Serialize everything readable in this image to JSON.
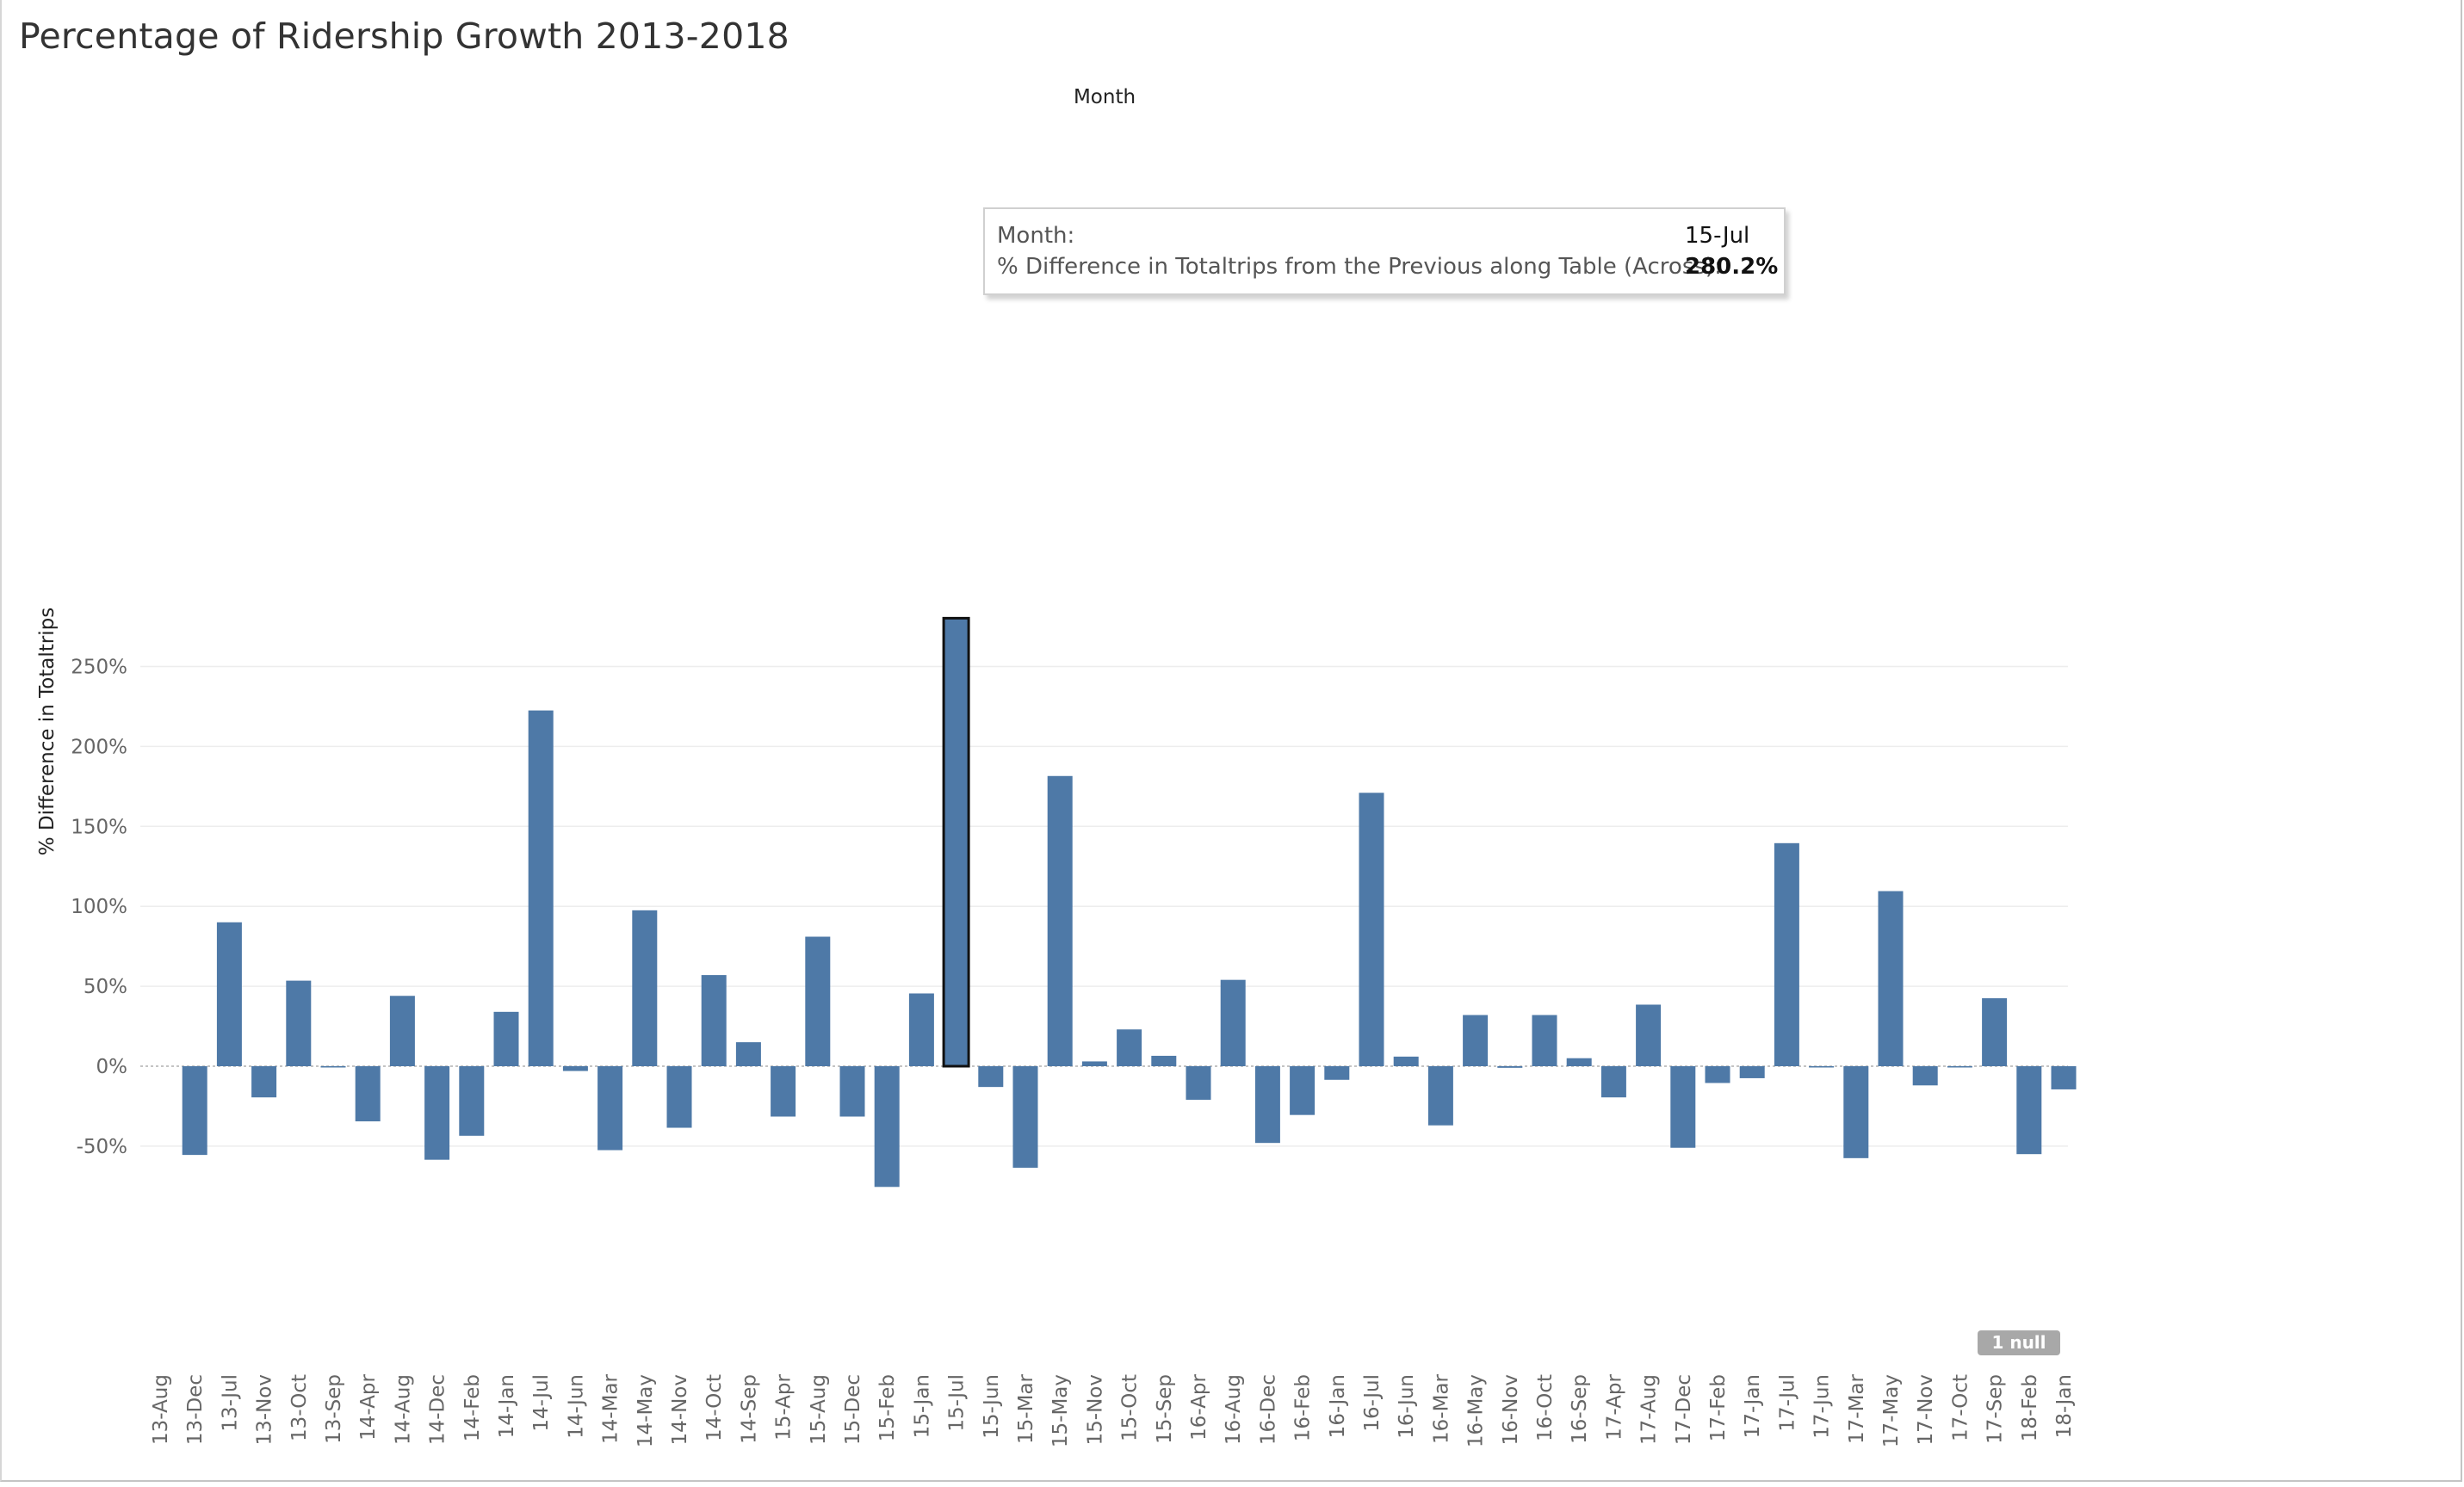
{
  "title": "Percentage of Ridership Growth 2013-2018",
  "chart_data": {
    "type": "bar",
    "title": "Percentage of Ridership Growth 2013-2018",
    "xlabel": "Month",
    "ylabel": "% Difference in Totaltrips",
    "categories": [
      "13-Aug",
      "13-Dec",
      "13-Jul",
      "13-Nov",
      "13-Oct",
      "13-Sep",
      "14-Apr",
      "14-Aug",
      "14-Dec",
      "14-Feb",
      "14-Jan",
      "14-Jul",
      "14-Jun",
      "14-Mar",
      "14-May",
      "14-Nov",
      "14-Oct",
      "14-Sep",
      "15-Apr",
      "15-Aug",
      "15-Dec",
      "15-Feb",
      "15-Jan",
      "15-Jul",
      "15-Jun",
      "15-Mar",
      "15-May",
      "15-Nov",
      "15-Oct",
      "15-Sep",
      "16-Apr",
      "16-Aug",
      "16-Dec",
      "16-Feb",
      "16-Jan",
      "16-Jul",
      "16-Jun",
      "16-Mar",
      "16-May",
      "16-Nov",
      "16-Oct",
      "16-Sep",
      "17-Apr",
      "17-Aug",
      "17-Dec",
      "17-Feb",
      "17-Jan",
      "17-Jul",
      "17-Jun",
      "17-Mar",
      "17-May",
      "17-Nov",
      "17-Oct",
      "17-Sep",
      "18-Feb",
      "18-Jan"
    ],
    "values": [
      null,
      -55.5,
      90,
      -19.5,
      53.5,
      -0.5,
      -34.5,
      44,
      -58.5,
      -43.5,
      34,
      222.5,
      -3,
      -52.5,
      97.5,
      -38.5,
      57,
      15,
      -31.5,
      81,
      -31.5,
      -75.5,
      45.5,
      280.2,
      -13,
      -63.5,
      181.5,
      3,
      23,
      6.5,
      -21,
      54,
      -48,
      -30.5,
      -8.5,
      171,
      6,
      -37,
      32,
      -1,
      32,
      5,
      -19.5,
      38.5,
      -51,
      -10.5,
      -7.5,
      139.5,
      -0.5,
      -57.5,
      109.5,
      -12,
      -0.5,
      42.5,
      -55,
      -14.5
    ],
    "ylim": [
      -88,
      282
    ],
    "yticks": [
      -50,
      0,
      50,
      100,
      150,
      200,
      250
    ],
    "ytick_labels": [
      "-50%",
      "0%",
      "50%",
      "100%",
      "150%",
      "200%",
      "250%"
    ],
    "highlighted_category": "15-Jul",
    "bar_color": "#4e79a7",
    "grid": true,
    "null_indicator": "1 null"
  },
  "tooltip": {
    "key1": "Month:",
    "value1": "15-Jul",
    "key2": "% Difference in Totaltrips from the Previous along Table (Across):",
    "value2": "280.2%"
  }
}
